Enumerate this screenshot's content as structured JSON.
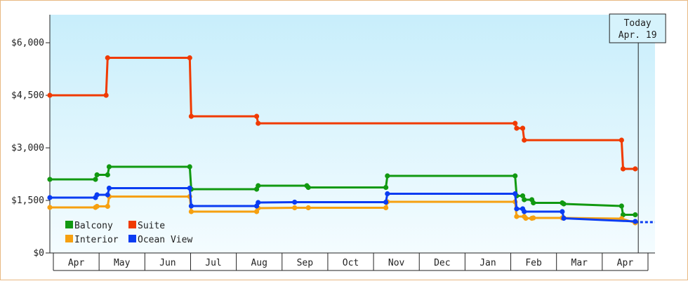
{
  "chart_data": {
    "type": "line",
    "step": true,
    "ylim": [
      0,
      6800
    ],
    "yticks": [
      {
        "value": 0,
        "label": "$0"
      },
      {
        "value": 1500,
        "label": "$1,500"
      },
      {
        "value": 3000,
        "label": "$3,000"
      },
      {
        "value": 4500,
        "label": "$4,500"
      },
      {
        "value": 6000,
        "label": "$6,000"
      }
    ],
    "x_range": [
      "2023-03-29",
      "2024-04-30"
    ],
    "x_months": [
      {
        "label": "Apr",
        "start": "2023-04-01"
      },
      {
        "label": "May",
        "start": "2023-05-01"
      },
      {
        "label": "Jun",
        "start": "2023-06-01"
      },
      {
        "label": "Jul",
        "start": "2023-07-01"
      },
      {
        "label": "Aug",
        "start": "2023-08-01"
      },
      {
        "label": "Sep",
        "start": "2023-09-01"
      },
      {
        "label": "Oct",
        "start": "2023-10-01"
      },
      {
        "label": "Nov",
        "start": "2023-11-01"
      },
      {
        "label": "Dec",
        "start": "2023-12-01"
      },
      {
        "label": "Jan",
        "start": "2024-01-01"
      },
      {
        "label": "Feb",
        "start": "2024-02-01"
      },
      {
        "label": "Mar",
        "start": "2024-03-01"
      },
      {
        "label": "Apr",
        "start": "2024-04-01"
      },
      {
        "label": "",
        "start": "2024-05-01"
      }
    ],
    "today": {
      "title": "Today",
      "label": "Apr. 19",
      "date": "2024-04-19"
    },
    "legend": {
      "position": "bottom-left"
    },
    "series": [
      {
        "name": "Balcony",
        "color": "#119911",
        "points": [
          [
            "2023-03-29",
            2100
          ],
          [
            "2023-04-28",
            2100
          ],
          [
            "2023-04-29",
            2230
          ],
          [
            "2023-05-06",
            2230
          ],
          [
            "2023-05-07",
            2460
          ],
          [
            "2023-06-29",
            2460
          ],
          [
            "2023-06-30",
            1820
          ],
          [
            "2023-08-12",
            1820
          ],
          [
            "2023-08-13",
            1920
          ],
          [
            "2023-09-14",
            1920
          ],
          [
            "2023-09-15",
            1870
          ],
          [
            "2023-11-05",
            1870
          ],
          [
            "2023-11-06",
            2200
          ],
          [
            "2024-01-29",
            2200
          ],
          [
            "2024-01-30",
            1630
          ],
          [
            "2024-02-03",
            1630
          ],
          [
            "2024-02-04",
            1520
          ],
          [
            "2024-02-09",
            1520
          ],
          [
            "2024-02-10",
            1430
          ],
          [
            "2024-02-29",
            1430
          ],
          [
            "2024-03-01",
            1400
          ],
          [
            "2024-04-08",
            1340
          ],
          [
            "2024-04-09",
            1090
          ],
          [
            "2024-04-17",
            1090
          ]
        ]
      },
      {
        "name": "Interior",
        "color": "#f6a010",
        "points": [
          [
            "2023-03-29",
            1300
          ],
          [
            "2023-04-28",
            1300
          ],
          [
            "2023-04-29",
            1330
          ],
          [
            "2023-05-06",
            1330
          ],
          [
            "2023-05-07",
            1610
          ],
          [
            "2023-06-29",
            1610
          ],
          [
            "2023-06-30",
            1180
          ],
          [
            "2023-08-12",
            1180
          ],
          [
            "2023-08-13",
            1280
          ],
          [
            "2023-09-06",
            1290
          ],
          [
            "2023-09-15",
            1290
          ],
          [
            "2023-11-05",
            1290
          ],
          [
            "2023-11-06",
            1460
          ],
          [
            "2024-01-29",
            1460
          ],
          [
            "2024-01-30",
            1040
          ],
          [
            "2024-02-04",
            1040
          ],
          [
            "2024-02-05",
            990
          ],
          [
            "2024-02-09",
            990
          ],
          [
            "2024-02-10",
            1000
          ],
          [
            "2024-02-29",
            1000
          ],
          [
            "2024-03-01",
            1000
          ],
          [
            "2024-04-08",
            980
          ],
          [
            "2024-04-17",
            860
          ]
        ]
      },
      {
        "name": "Suite",
        "color": "#f03a00",
        "points": [
          [
            "2023-03-29",
            4500
          ],
          [
            "2023-05-05",
            4500
          ],
          [
            "2023-05-06",
            5570
          ],
          [
            "2023-06-29",
            5570
          ],
          [
            "2023-06-30",
            3900
          ],
          [
            "2023-08-12",
            3900
          ],
          [
            "2023-08-13",
            3700
          ],
          [
            "2024-01-29",
            3700
          ],
          [
            "2024-01-30",
            3560
          ],
          [
            "2024-02-03",
            3560
          ],
          [
            "2024-02-04",
            3220
          ],
          [
            "2024-04-08",
            3220
          ],
          [
            "2024-04-09",
            2400
          ],
          [
            "2024-04-17",
            2400
          ]
        ]
      },
      {
        "name": "Ocean View",
        "color": "#0a3cf2",
        "points": [
          [
            "2023-03-29",
            1580
          ],
          [
            "2023-04-28",
            1580
          ],
          [
            "2023-04-29",
            1660
          ],
          [
            "2023-05-06",
            1660
          ],
          [
            "2023-05-07",
            1850
          ],
          [
            "2023-06-29",
            1850
          ],
          [
            "2023-06-30",
            1340
          ],
          [
            "2023-08-12",
            1340
          ],
          [
            "2023-08-13",
            1440
          ],
          [
            "2023-09-06",
            1450
          ],
          [
            "2023-11-05",
            1450
          ],
          [
            "2023-11-06",
            1690
          ],
          [
            "2024-01-29",
            1690
          ],
          [
            "2024-01-30",
            1260
          ],
          [
            "2024-02-03",
            1260
          ],
          [
            "2024-02-04",
            1180
          ],
          [
            "2024-02-29",
            1180
          ],
          [
            "2024-03-01",
            990
          ],
          [
            "2024-04-17",
            900
          ]
        ],
        "projection": {
          "from": "2024-04-17",
          "to": "2024-04-30",
          "value": 880
        }
      }
    ]
  }
}
